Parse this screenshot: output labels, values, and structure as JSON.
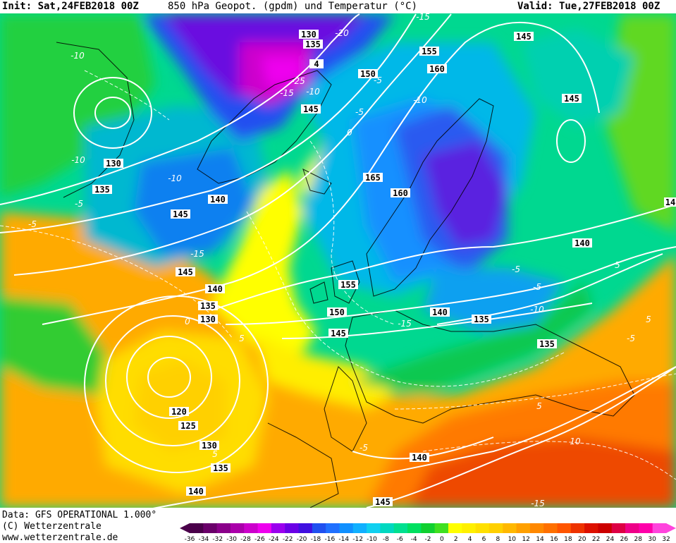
{
  "header": {
    "init": "Init: Sat,24FEB2018 00Z",
    "title": "850 hPa Geopot. (gpdm) und Temperatur (°C)",
    "valid": "Valid: Tue,27FEB2018 00Z"
  },
  "footer": {
    "data_line": "Data: GFS OPERATIONAL 1.000°",
    "copyright": "(C) Wetterzentrale",
    "url": "www.wetterzentrale.de"
  },
  "color_scale": {
    "ticks": [
      "-36",
      "-34",
      "-32",
      "-30",
      "-28",
      "-26",
      "-24",
      "-22",
      "-20",
      "-18",
      "-16",
      "-14",
      "-12",
      "-10",
      "-8",
      "-6",
      "-4",
      "-2",
      "0",
      "2",
      "4",
      "6",
      "8",
      "10",
      "12",
      "14",
      "16",
      "18",
      "20",
      "22",
      "24",
      "26",
      "28",
      "30",
      "32"
    ],
    "colors": [
      "#4a004a",
      "#6a006a",
      "#8a008a",
      "#aa00aa",
      "#cc00cc",
      "#ee00ee",
      "#9a00ee",
      "#6a00e6",
      "#4010e0",
      "#2050f0",
      "#2070ff",
      "#1090ff",
      "#10b0ff",
      "#10d0f0",
      "#00d8c0",
      "#00e090",
      "#00e060",
      "#10d030",
      "#40e020",
      "#ffff00",
      "#fff000",
      "#ffe000",
      "#ffd000",
      "#ffb800",
      "#ffa000",
      "#ff8800",
      "#ff7000",
      "#ff5500",
      "#ee3300",
      "#dd1100",
      "#cc0000",
      "#dd0044",
      "#ee0088",
      "#ff00aa",
      "#ff44dd"
    ]
  },
  "geopotential_labels": [
    {
      "text": "130"
    },
    {
      "text": "135"
    },
    {
      "text": "145"
    },
    {
      "text": "4"
    },
    {
      "text": "155"
    },
    {
      "text": "160"
    },
    {
      "text": "150"
    },
    {
      "text": "145"
    },
    {
      "text": "145"
    },
    {
      "text": "130"
    },
    {
      "text": "135"
    },
    {
      "text": "140"
    },
    {
      "text": "145"
    },
    {
      "text": "165"
    },
    {
      "text": "160"
    },
    {
      "text": "140"
    },
    {
      "text": "145"
    },
    {
      "text": "140"
    },
    {
      "text": "135"
    },
    {
      "text": "130"
    },
    {
      "text": "155"
    },
    {
      "text": "150"
    },
    {
      "text": "145"
    },
    {
      "text": "140"
    },
    {
      "text": "135"
    },
    {
      "text": "135"
    },
    {
      "text": "120"
    },
    {
      "text": "125"
    },
    {
      "text": "130"
    },
    {
      "text": "135"
    },
    {
      "text": "140"
    },
    {
      "text": "140"
    },
    {
      "text": "145"
    },
    {
      "text": "14"
    }
  ],
  "temperature_labels": [
    {
      "text": "-20"
    },
    {
      "text": "-15"
    },
    {
      "text": "-25"
    },
    {
      "text": "-15"
    },
    {
      "text": "-10"
    },
    {
      "text": "-5"
    },
    {
      "text": "-10"
    },
    {
      "text": "-10"
    },
    {
      "text": "-5"
    },
    {
      "text": "0"
    },
    {
      "text": "-5"
    },
    {
      "text": "-15"
    },
    {
      "text": "-10"
    },
    {
      "text": "-5"
    },
    {
      "text": "-15"
    },
    {
      "text": "0"
    },
    {
      "text": "5"
    },
    {
      "text": "-5"
    },
    {
      "text": "5"
    },
    {
      "text": "10"
    },
    {
      "text": "5"
    },
    {
      "text": "5"
    },
    {
      "text": "-5"
    },
    {
      "text": "-10"
    },
    {
      "text": "-15"
    },
    {
      "text": "-5"
    },
    {
      "text": "-5"
    },
    {
      "text": "-10"
    },
    {
      "text": "5"
    }
  ]
}
